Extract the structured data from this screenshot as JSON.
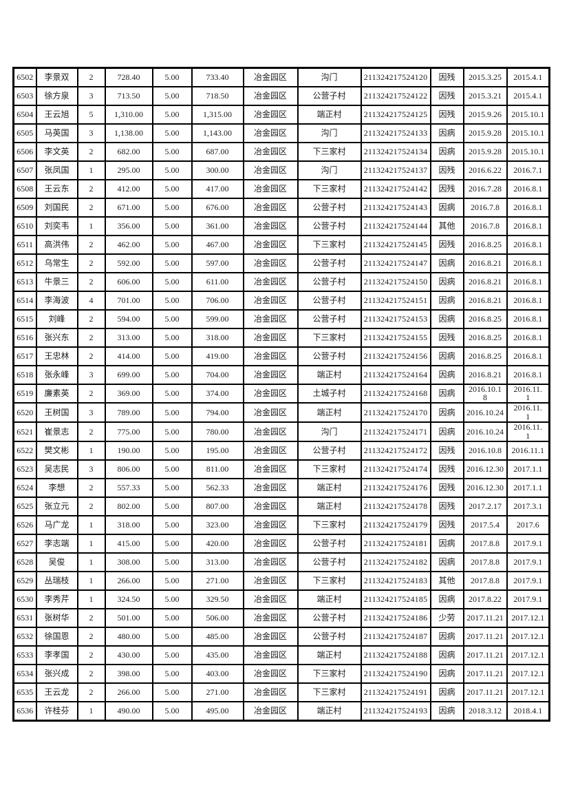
{
  "page": {
    "background_color": "#ffffff",
    "table_border_color": "#000000",
    "text_color": "#1c1c1c"
  },
  "table": {
    "row_id_range": {
      "first": "6502",
      "last": "6536"
    },
    "district_constant": "冶金园区",
    "fee_constant": "5.00",
    "rows": [
      [
        "6502",
        "李景双",
        "2",
        "728.40",
        "5.00",
        "733.40",
        "冶金园区",
        "沟门",
        "211324217524120",
        "因残",
        "2015.3.25",
        "2015.4.1"
      ],
      [
        "6503",
        "徐方泉",
        "3",
        "713.50",
        "5.00",
        "718.50",
        "冶金园区",
        "公营子村",
        "211324217524122",
        "因残",
        "2015.3.21",
        "2015.4.1"
      ],
      [
        "6504",
        "王云旭",
        "5",
        "1,310.00",
        "5.00",
        "1,315.00",
        "冶金园区",
        "端正村",
        "211324217524125",
        "因残",
        "2015.9.26",
        "2015.10.1"
      ],
      [
        "6505",
        "马英国",
        "3",
        "1,138.00",
        "5.00",
        "1,143.00",
        "冶金园区",
        "沟门",
        "211324217524133",
        "因病",
        "2015.9.28",
        "2015.10.1"
      ],
      [
        "6506",
        "李文英",
        "2",
        "682.00",
        "5.00",
        "687.00",
        "冶金园区",
        "下三家村",
        "211324217524134",
        "因病",
        "2015.9.28",
        "2015.10.1"
      ],
      [
        "6507",
        "张凤国",
        "1",
        "295.00",
        "5.00",
        "300.00",
        "冶金园区",
        "沟门",
        "211324217524137",
        "因残",
        "2016.6.22",
        "2016.7.1"
      ],
      [
        "6508",
        "王云东",
        "2",
        "412.00",
        "5.00",
        "417.00",
        "冶金园区",
        "下三家村",
        "211324217524142",
        "因残",
        "2016.7.28",
        "2016.8.1"
      ],
      [
        "6509",
        "刘国民",
        "2",
        "671.00",
        "5.00",
        "676.00",
        "冶金园区",
        "公营子村",
        "211324217524143",
        "因病",
        "2016.7.8",
        "2016.8.1"
      ],
      [
        "6510",
        "刘奕韦",
        "1",
        "356.00",
        "5.00",
        "361.00",
        "冶金园区",
        "公营子村",
        "211324217524144",
        "其他",
        "2016.7.8",
        "2016.8.1"
      ],
      [
        "6511",
        "高洪伟",
        "2",
        "462.00",
        "5.00",
        "467.00",
        "冶金园区",
        "下三家村",
        "211324217524145",
        "因残",
        "2016.8.25",
        "2016.8.1"
      ],
      [
        "6512",
        "乌常生",
        "2",
        "592.00",
        "5.00",
        "597.00",
        "冶金园区",
        "公营子村",
        "211324217524147",
        "因病",
        "2016.8.21",
        "2016.8.1"
      ],
      [
        "6513",
        "牛景三",
        "2",
        "606.00",
        "5.00",
        "611.00",
        "冶金园区",
        "公营子村",
        "211324217524150",
        "因病",
        "2016.8.21",
        "2016.8.1"
      ],
      [
        "6514",
        "李海波",
        "4",
        "701.00",
        "5.00",
        "706.00",
        "冶金园区",
        "公营子村",
        "211324217524151",
        "因病",
        "2016.8.21",
        "2016.8.1"
      ],
      [
        "6515",
        "刘峰",
        "2",
        "594.00",
        "5.00",
        "599.00",
        "冶金园区",
        "公营子村",
        "211324217524153",
        "因病",
        "2016.8.25",
        "2016.8.1"
      ],
      [
        "6516",
        "张兴东",
        "2",
        "313.00",
        "5.00",
        "318.00",
        "冶金园区",
        "下三家村",
        "211324217524155",
        "因残",
        "2016.8.25",
        "2016.8.1"
      ],
      [
        "6517",
        "王忠林",
        "2",
        "414.00",
        "5.00",
        "419.00",
        "冶金园区",
        "公营子村",
        "211324217524156",
        "因病",
        "2016.8.25",
        "2016.8.1"
      ],
      [
        "6518",
        "张永峰",
        "3",
        "699.00",
        "5.00",
        "704.00",
        "冶金园区",
        "端正村",
        "211324217524164",
        "因病",
        "2016.8.21",
        "2016.8.1"
      ],
      [
        "6519",
        "廉素英",
        "2",
        "369.00",
        "5.00",
        "374.00",
        "冶金园区",
        "土城子村",
        "211324217524168",
        "因病",
        "2016.10.1\n8",
        "2016.11.\n1"
      ],
      [
        "6520",
        "王树国",
        "3",
        "789.00",
        "5.00",
        "794.00",
        "冶金园区",
        "端正村",
        "211324217524170",
        "因病",
        "2016.10.24",
        "2016.11.\n1"
      ],
      [
        "6521",
        "崔景志",
        "2",
        "775.00",
        "5.00",
        "780.00",
        "冶金园区",
        "沟门",
        "211324217524171",
        "因病",
        "2016.10.24",
        "2016.11.\n1"
      ],
      [
        "6522",
        "樊文彬",
        "1",
        "190.00",
        "5.00",
        "195.00",
        "冶金园区",
        "公营子村",
        "211324217524172",
        "因残",
        "2016.10.8",
        "2016.11.1"
      ],
      [
        "6523",
        "吴志民",
        "3",
        "806.00",
        "5.00",
        "811.00",
        "冶金园区",
        "下三家村",
        "211324217524174",
        "因残",
        "2016.12.30",
        "2017.1.1"
      ],
      [
        "6524",
        "李想",
        "2",
        "557.33",
        "5.00",
        "562.33",
        "冶金园区",
        "端正村",
        "211324217524176",
        "因残",
        "2016.12.30",
        "2017.1.1"
      ],
      [
        "6525",
        "张立元",
        "2",
        "802.00",
        "5.00",
        "807.00",
        "冶金园区",
        "端正村",
        "211324217524178",
        "因残",
        "2017.2.17",
        "2017.3.1"
      ],
      [
        "6526",
        "马广龙",
        "1",
        "318.00",
        "5.00",
        "323.00",
        "冶金园区",
        "下三家村",
        "211324217524179",
        "因残",
        "2017.5.4",
        "2017.6"
      ],
      [
        "6527",
        "李志端",
        "1",
        "415.00",
        "5.00",
        "420.00",
        "冶金园区",
        "公营子村",
        "211324217524181",
        "因病",
        "2017.8.8",
        "2017.9.1"
      ],
      [
        "6528",
        "吴俊",
        "1",
        "308.00",
        "5.00",
        "313.00",
        "冶金园区",
        "公营子村",
        "211324217524182",
        "因病",
        "2017.8.8",
        "2017.9.1"
      ],
      [
        "6529",
        "丛瑞枝",
        "1",
        "266.00",
        "5.00",
        "271.00",
        "冶金园区",
        "下三家村",
        "211324217524183",
        "其他",
        "2017.8.8",
        "2017.9.1"
      ],
      [
        "6530",
        "李秀芹",
        "1",
        "324.50",
        "5.00",
        "329.50",
        "冶金园区",
        "端正村",
        "211324217524185",
        "因病",
        "2017.8.22",
        "2017.9.1"
      ],
      [
        "6531",
        "张树华",
        "2",
        "501.00",
        "5.00",
        "506.00",
        "冶金园区",
        "公营子村",
        "211324217524186",
        "少劳",
        "2017.11.21",
        "2017.12.1"
      ],
      [
        "6532",
        "徐国恩",
        "2",
        "480.00",
        "5.00",
        "485.00",
        "冶金园区",
        "公营子村",
        "211324217524187",
        "因病",
        "2017.11.21",
        "2017.12.1"
      ],
      [
        "6533",
        "李孝国",
        "2",
        "430.00",
        "5.00",
        "435.00",
        "冶金园区",
        "端正村",
        "211324217524188",
        "因病",
        "2017.11.21",
        "2017.12.1"
      ],
      [
        "6534",
        "张兴成",
        "2",
        "398.00",
        "5.00",
        "403.00",
        "冶金园区",
        "下三家村",
        "211324217524190",
        "因病",
        "2017.11.21",
        "2017.12.1"
      ],
      [
        "6535",
        "王云龙",
        "2",
        "266.00",
        "5.00",
        "271.00",
        "冶金园区",
        "下三家村",
        "211324217524191",
        "因病",
        "2017.11.21",
        "2017.12.1"
      ],
      [
        "6536",
        "许桂芬",
        "1",
        "490.00",
        "5.00",
        "495.00",
        "冶金园区",
        "端正村",
        "211324217524193",
        "因病",
        "2018.3.12",
        "2018.4.1"
      ]
    ]
  }
}
